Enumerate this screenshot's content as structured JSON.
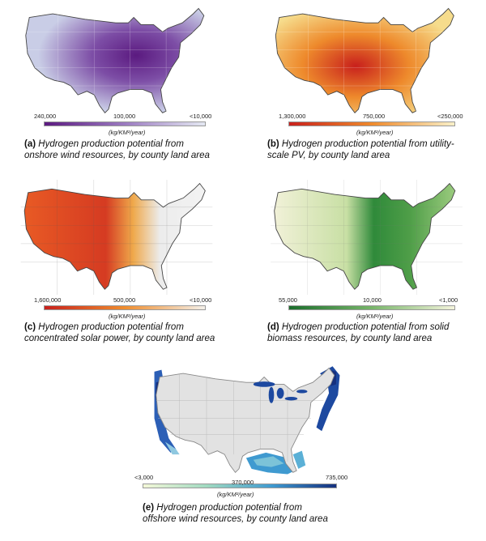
{
  "panels": [
    {
      "letter": "(a)",
      "caption_line1": "Hydrogen production potential from",
      "caption_line2": "onshore wind resources, by county land area",
      "scale_left": "240,000",
      "scale_mid": "100,000",
      "scale_right": "<10,000",
      "unit": "(kg/KM²/year)",
      "colors": {
        "high": "#5b1a80",
        "mid": "#9b7bc0",
        "low": "#e4e8f2"
      }
    },
    {
      "letter": "(b)",
      "caption_line1": "Hydrogen production potential from  utility-",
      "caption_line2": "scale PV, by county land area",
      "scale_left": "1,300,000",
      "scale_mid": "750,000",
      "scale_right": "<250,000",
      "unit": "(kg/KM²/year)",
      "colors": {
        "high": "#c8201c",
        "mid": "#ee8a2c",
        "low": "#f9f0c8"
      }
    },
    {
      "letter": "(c)",
      "caption_line1": "Hydrogen production potential from",
      "caption_line2": "concentrated solar power, by county land area",
      "scale_left": "1,600,000",
      "scale_mid": "500,000",
      "scale_right": "<10,000",
      "unit": "(kg/KM²/year)",
      "colors": {
        "high": "#c8201c",
        "mid": "#ef8d2e",
        "low": "#f4f1ea"
      }
    },
    {
      "letter": "(d)",
      "caption_line1": "Hydrogen production potential from solid",
      "caption_line2": "biomass resources, by county land area",
      "scale_left": "55,000",
      "scale_mid": "10,000",
      "scale_right": "<1,000",
      "unit": "(kg/KM²/year)",
      "colors": {
        "high": "#1b6e2c",
        "mid": "#78b56a",
        "low": "#f4f4dc"
      }
    },
    {
      "letter": "(e)",
      "caption_line1": "Hydrogen production potential from",
      "caption_line2": "offshore wind resources, by county land area",
      "scale_left": "<3,000",
      "scale_mid": "370,000",
      "scale_right": "735,000",
      "unit": "(kg/KM²/year)",
      "colors": {
        "high": "#15307e",
        "mid": "#3f9ad0",
        "low": "#f4f8d8"
      }
    }
  ]
}
